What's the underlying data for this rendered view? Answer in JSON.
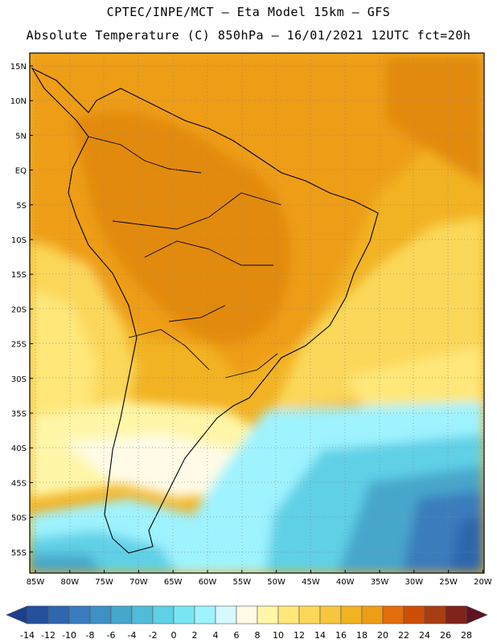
{
  "header": {
    "title_line1": "CPTEC/INPE/MCT –  Eta Model 15km – GFS",
    "title_line2": "Absolute Temperature (C) 850hPa – 16/01/2021 12UTC fct=20h"
  },
  "map": {
    "lat_labels": [
      "15N",
      "10N",
      "5N",
      "EQ",
      "5S",
      "10S",
      "15S",
      "20S",
      "25S",
      "30S",
      "35S",
      "40S",
      "45S",
      "50S",
      "55S"
    ],
    "lon_labels": [
      "85W",
      "80W",
      "75W",
      "70W",
      "65W",
      "60W",
      "55W",
      "50W",
      "45W",
      "40W",
      "35W",
      "30W",
      "25W",
      "20W"
    ],
    "grid": "dotted",
    "fields": {
      "tropics": "18 to 20",
      "southern_ocean_min": "-4 to -2",
      "patagonia": "0 to 6"
    }
  },
  "colorbar": {
    "tick_labels": [
      "-14",
      "-12",
      "-10",
      "-8",
      "-6",
      "-4",
      "-2",
      "0",
      "2",
      "4",
      "6",
      "8",
      "10",
      "12",
      "14",
      "16",
      "18",
      "20",
      "22",
      "24",
      "26",
      "28"
    ],
    "colors": [
      "#1c3f8c",
      "#24509c",
      "#2f66ad",
      "#3a7cbd",
      "#3f90c4",
      "#47a6cc",
      "#50bcd8",
      "#5fd0e6",
      "#7ae5f2",
      "#9ff3ff",
      "#d6f8ff",
      "#fffbe6",
      "#fff6a8",
      "#ffe77a",
      "#fbd85a",
      "#f7c63e",
      "#f2b323",
      "#ee9d17",
      "#e26d0b",
      "#cc4f06",
      "#a83d12",
      "#80231a",
      "#5e1222"
    ]
  }
}
